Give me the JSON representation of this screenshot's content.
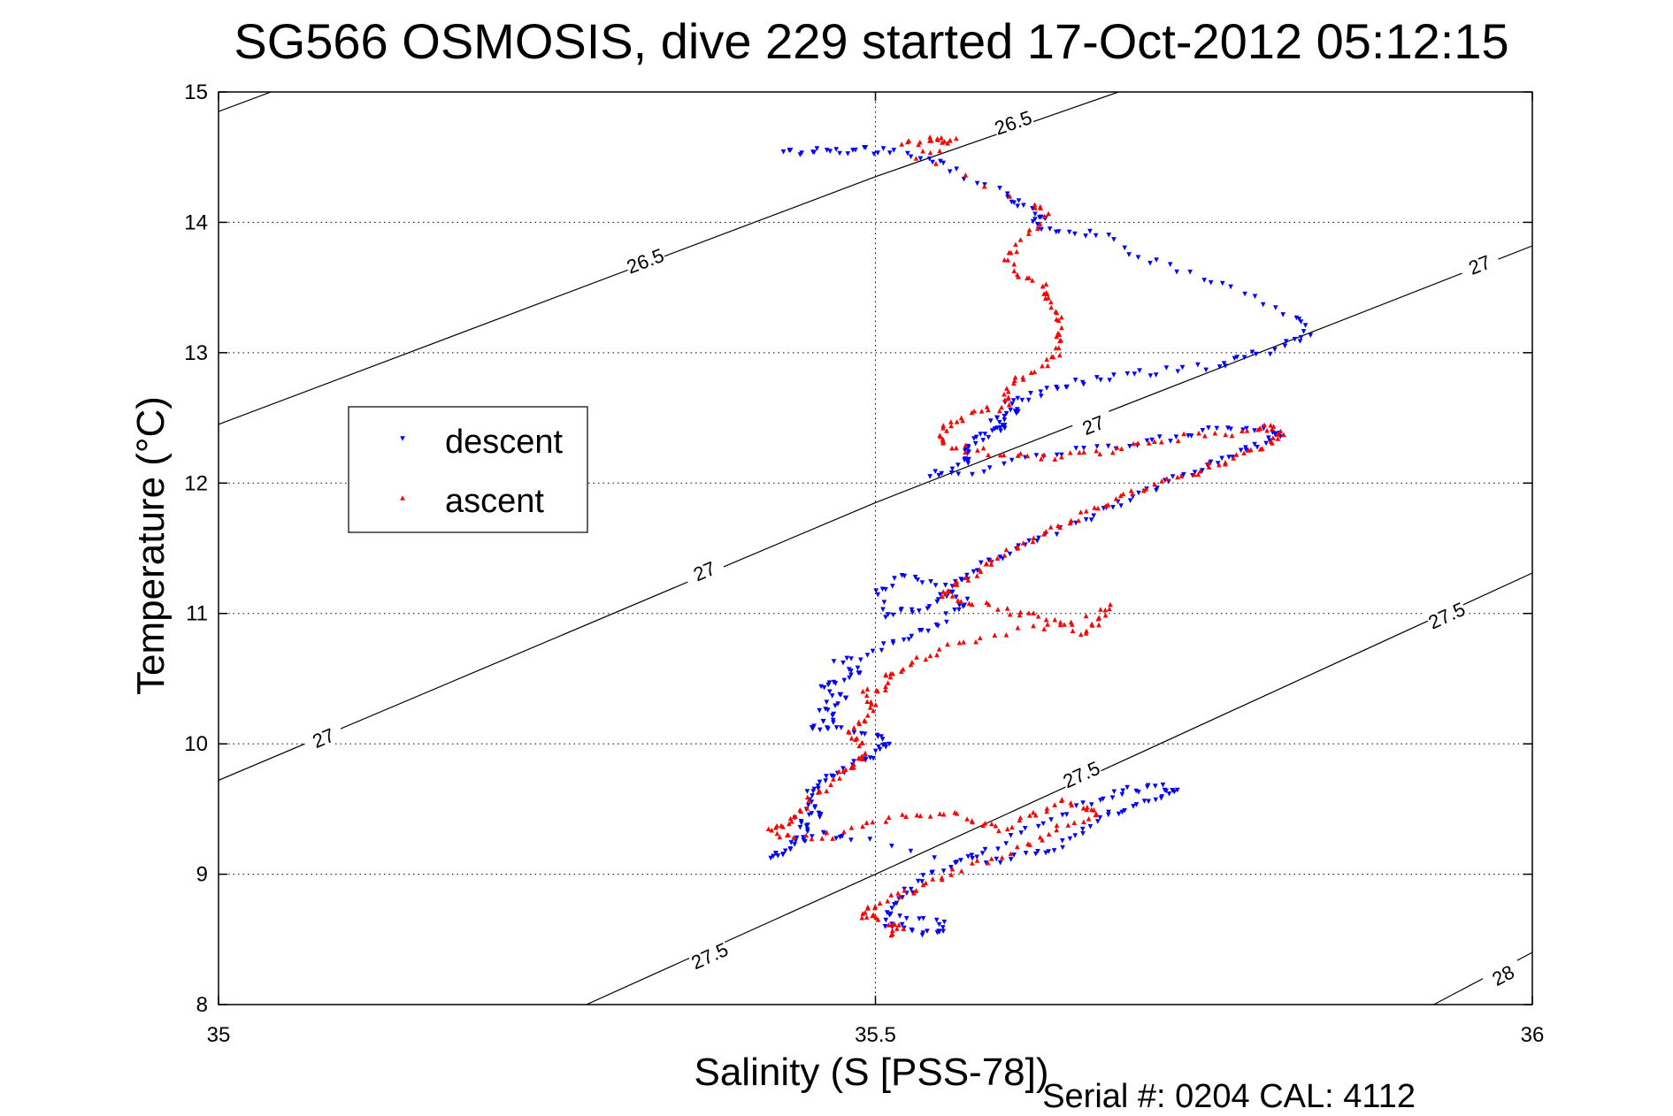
{
  "chart_data": {
    "type": "scatter",
    "title": "SG566 OSMOSIS, dive 229 started 17-Oct-2012 05:12:15",
    "xlabel": "Salinity (S [PSS-78])",
    "ylabel": "Temperature (°C)",
    "xlim": [
      35,
      36
    ],
    "ylim": [
      8,
      15
    ],
    "xticks": [
      35,
      35.5,
      36
    ],
    "xtick_labels": [
      "35",
      "35.5",
      "36"
    ],
    "yticks": [
      8,
      9,
      10,
      11,
      12,
      13,
      14,
      15
    ],
    "ytick_labels": [
      "8",
      "9",
      "10",
      "11",
      "12",
      "13",
      "14",
      "15"
    ],
    "grid": true,
    "legend_position": "upper-left",
    "footer": "Serial #: 0204  CAL: 4112",
    "colors": {
      "descent": "#0000ff",
      "ascent": "#ff0000",
      "axis": "#000000",
      "grid": "#000000"
    },
    "series": [
      {
        "name": "descent",
        "marker": "triangle-down",
        "points": [
          [
            35.43,
            14.54
          ],
          [
            35.45,
            14.54
          ],
          [
            35.47,
            14.55
          ],
          [
            35.49,
            14.55
          ],
          [
            35.51,
            14.54
          ],
          [
            35.54,
            14.5
          ],
          [
            35.56,
            14.39
          ],
          [
            35.6,
            14.2
          ],
          [
            35.61,
            14.13
          ],
          [
            35.63,
            14.05
          ],
          [
            35.62,
            13.98
          ],
          [
            35.64,
            13.91
          ],
          [
            35.67,
            13.92
          ],
          [
            35.7,
            13.74
          ],
          [
            35.74,
            13.6
          ],
          [
            35.78,
            13.45
          ],
          [
            35.82,
            13.28
          ],
          [
            35.83,
            13.15
          ],
          [
            35.81,
            13.05
          ],
          [
            35.78,
            12.96
          ],
          [
            35.76,
            12.9
          ],
          [
            35.72,
            12.86
          ],
          [
            35.69,
            12.82
          ],
          [
            35.66,
            12.78
          ],
          [
            35.64,
            12.74
          ],
          [
            35.62,
            12.67
          ],
          [
            35.6,
            12.6
          ],
          [
            35.61,
            12.55
          ],
          [
            35.59,
            12.5
          ],
          [
            35.6,
            12.44
          ],
          [
            35.59,
            12.4
          ],
          [
            35.58,
            12.34
          ],
          [
            35.57,
            12.28
          ],
          [
            35.57,
            12.22
          ],
          [
            35.57,
            12.14
          ],
          [
            35.54,
            12.06
          ],
          [
            35.58,
            12.1
          ],
          [
            35.62,
            12.2
          ],
          [
            35.66,
            12.25
          ],
          [
            35.7,
            12.3
          ],
          [
            35.73,
            12.36
          ],
          [
            35.76,
            12.41
          ],
          [
            35.79,
            12.42
          ],
          [
            35.81,
            12.39
          ],
          [
            35.8,
            12.33
          ],
          [
            35.78,
            12.25
          ],
          [
            35.76,
            12.17
          ],
          [
            35.74,
            12.08
          ],
          [
            35.72,
            12.0
          ],
          [
            35.7,
            11.9
          ],
          [
            35.68,
            11.82
          ],
          [
            35.66,
            11.72
          ],
          [
            35.63,
            11.6
          ],
          [
            35.61,
            11.5
          ],
          [
            35.59,
            11.41
          ],
          [
            35.57,
            11.3
          ],
          [
            35.56,
            11.2
          ],
          [
            35.55,
            11.1
          ],
          [
            35.53,
            11.03
          ],
          [
            35.51,
            10.98
          ],
          [
            35.5,
            11.15
          ],
          [
            35.52,
            11.27
          ],
          [
            35.54,
            11.25
          ],
          [
            35.57,
            11.1
          ],
          [
            35.56,
            11.0
          ],
          [
            35.54,
            10.88
          ],
          [
            35.52,
            10.8
          ],
          [
            35.5,
            10.7
          ],
          [
            35.47,
            10.62
          ],
          [
            35.49,
            10.55
          ],
          [
            35.47,
            10.48
          ],
          [
            35.46,
            10.42
          ],
          [
            35.48,
            10.35
          ],
          [
            35.46,
            10.28
          ],
          [
            35.47,
            10.2
          ],
          [
            35.45,
            10.12
          ],
          [
            35.47,
            10.1
          ],
          [
            35.5,
            10.08
          ],
          [
            35.51,
            10.0
          ],
          [
            35.5,
            9.92
          ],
          [
            35.49,
            9.86
          ],
          [
            35.47,
            9.78
          ],
          [
            35.46,
            9.7
          ],
          [
            35.45,
            9.61
          ],
          [
            35.45,
            9.52
          ],
          [
            35.46,
            9.46
          ],
          [
            35.44,
            9.41
          ],
          [
            35.45,
            9.33
          ],
          [
            35.44,
            9.25
          ],
          [
            35.43,
            9.18
          ],
          [
            35.42,
            9.13
          ],
          [
            35.46,
            9.3
          ],
          [
            35.48,
            9.28
          ],
          [
            35.56,
            9.11
          ],
          [
            35.59,
            9.1
          ],
          [
            35.62,
            9.15
          ],
          [
            35.64,
            9.22
          ],
          [
            35.66,
            9.35
          ],
          [
            35.68,
            9.45
          ],
          [
            35.7,
            9.53
          ],
          [
            35.72,
            9.6
          ],
          [
            35.73,
            9.65
          ],
          [
            35.71,
            9.67
          ],
          [
            35.69,
            9.63
          ],
          [
            35.67,
            9.58
          ],
          [
            35.64,
            9.45
          ],
          [
            35.61,
            9.3
          ],
          [
            35.58,
            9.16
          ],
          [
            35.55,
            9.04
          ],
          [
            35.53,
            8.92
          ],
          [
            35.52,
            8.82
          ],
          [
            35.51,
            8.72
          ],
          [
            35.51,
            8.62
          ],
          [
            35.53,
            8.56
          ],
          [
            35.55,
            8.54
          ],
          [
            35.55,
            8.63
          ],
          [
            35.52,
            8.68
          ]
        ]
      },
      {
        "name": "ascent",
        "marker": "triangle-up",
        "points": [
          [
            35.52,
            14.6
          ],
          [
            35.54,
            14.63
          ],
          [
            35.55,
            14.64
          ],
          [
            35.56,
            14.62
          ],
          [
            35.53,
            14.5
          ],
          [
            35.62,
            14.15
          ],
          [
            35.63,
            14.05
          ],
          [
            35.61,
            13.85
          ],
          [
            35.6,
            13.72
          ],
          [
            35.61,
            13.6
          ],
          [
            35.63,
            13.5
          ],
          [
            35.63,
            13.4
          ],
          [
            35.64,
            13.28
          ],
          [
            35.64,
            13.15
          ],
          [
            35.64,
            13.02
          ],
          [
            35.63,
            12.9
          ],
          [
            35.61,
            12.82
          ],
          [
            35.6,
            12.72
          ],
          [
            35.6,
            12.6
          ],
          [
            35.58,
            12.55
          ],
          [
            35.56,
            12.48
          ],
          [
            35.55,
            12.4
          ],
          [
            35.55,
            12.3
          ],
          [
            35.57,
            12.26
          ],
          [
            35.6,
            12.22
          ],
          [
            35.63,
            12.2
          ],
          [
            35.66,
            12.22
          ],
          [
            35.69,
            12.28
          ],
          [
            35.72,
            12.34
          ],
          [
            35.76,
            12.38
          ],
          [
            35.79,
            12.4
          ],
          [
            35.8,
            12.43
          ],
          [
            35.81,
            12.38
          ],
          [
            35.8,
            12.3
          ],
          [
            35.78,
            12.22
          ],
          [
            35.76,
            12.15
          ],
          [
            35.74,
            12.08
          ],
          [
            35.71,
            11.98
          ],
          [
            35.69,
            11.9
          ],
          [
            35.67,
            11.82
          ],
          [
            35.65,
            11.72
          ],
          [
            35.63,
            11.62
          ],
          [
            35.61,
            11.52
          ],
          [
            35.59,
            11.42
          ],
          [
            35.58,
            11.32
          ],
          [
            35.56,
            11.22
          ],
          [
            35.55,
            11.15
          ],
          [
            35.57,
            11.1
          ],
          [
            35.6,
            11.02
          ],
          [
            35.62,
            10.98
          ],
          [
            35.64,
            10.92
          ],
          [
            35.66,
            10.85
          ],
          [
            35.67,
            10.95
          ],
          [
            35.68,
            11.05
          ],
          [
            35.63,
            10.9
          ],
          [
            35.58,
            10.82
          ],
          [
            35.55,
            10.72
          ],
          [
            35.53,
            10.62
          ],
          [
            35.51,
            10.55
          ],
          [
            35.51,
            10.45
          ],
          [
            35.49,
            10.38
          ],
          [
            35.5,
            10.28
          ],
          [
            35.49,
            10.18
          ],
          [
            35.48,
            10.08
          ],
          [
            35.49,
            9.98
          ],
          [
            35.49,
            9.9
          ],
          [
            35.48,
            9.82
          ],
          [
            35.47,
            9.72
          ],
          [
            35.45,
            9.58
          ],
          [
            35.44,
            9.45
          ],
          [
            35.43,
            9.38
          ],
          [
            35.42,
            9.33
          ],
          [
            35.44,
            9.28
          ],
          [
            35.47,
            9.3
          ],
          [
            35.5,
            9.42
          ],
          [
            35.53,
            9.45
          ],
          [
            35.56,
            9.45
          ],
          [
            35.58,
            9.4
          ],
          [
            35.6,
            9.35
          ],
          [
            35.62,
            9.45
          ],
          [
            35.64,
            9.55
          ],
          [
            35.66,
            9.52
          ],
          [
            35.67,
            9.45
          ],
          [
            35.64,
            9.35
          ],
          [
            35.62,
            9.25
          ],
          [
            35.59,
            9.12
          ],
          [
            35.56,
            9.02
          ],
          [
            35.54,
            8.92
          ],
          [
            35.52,
            8.85
          ],
          [
            35.5,
            8.78
          ],
          [
            35.49,
            8.7
          ],
          [
            35.5,
            8.65
          ],
          [
            35.52,
            8.6
          ],
          [
            35.51,
            8.55
          ]
        ]
      }
    ],
    "density_contours": [
      {
        "label": "26.5",
        "points": [
          [
            35.0,
            12.45
          ],
          [
            35.5,
            14.35
          ],
          [
            35.685,
            15.0
          ]
        ],
        "label_positions": [
          [
            35.325,
            13.7
          ],
          [
            35.605,
            14.76
          ]
        ]
      },
      {
        "label": "26.5",
        "points": [
          [
            35.0,
            14.85
          ],
          [
            35.04,
            15.0
          ]
        ],
        "label_positions": []
      },
      {
        "label": "27",
        "points": [
          [
            35.0,
            9.72
          ],
          [
            35.5,
            11.85
          ],
          [
            36.0,
            13.82
          ]
        ],
        "label_positions": [
          [
            35.08,
            10.04
          ],
          [
            35.37,
            11.32
          ],
          [
            35.666,
            12.44
          ],
          [
            35.96,
            13.67
          ]
        ]
      },
      {
        "label": "27.5",
        "points": [
          [
            35.28,
            8.0
          ],
          [
            35.5,
            9.0
          ],
          [
            36.0,
            11.31
          ]
        ],
        "label_positions": [
          [
            35.374,
            8.37
          ],
          [
            35.657,
            9.76
          ],
          [
            35.935,
            10.98
          ]
        ]
      },
      {
        "label": "28",
        "points": [
          [
            35.925,
            8.0
          ],
          [
            36.0,
            8.4
          ]
        ],
        "label_positions": [
          [
            35.978,
            8.22
          ]
        ]
      }
    ]
  }
}
